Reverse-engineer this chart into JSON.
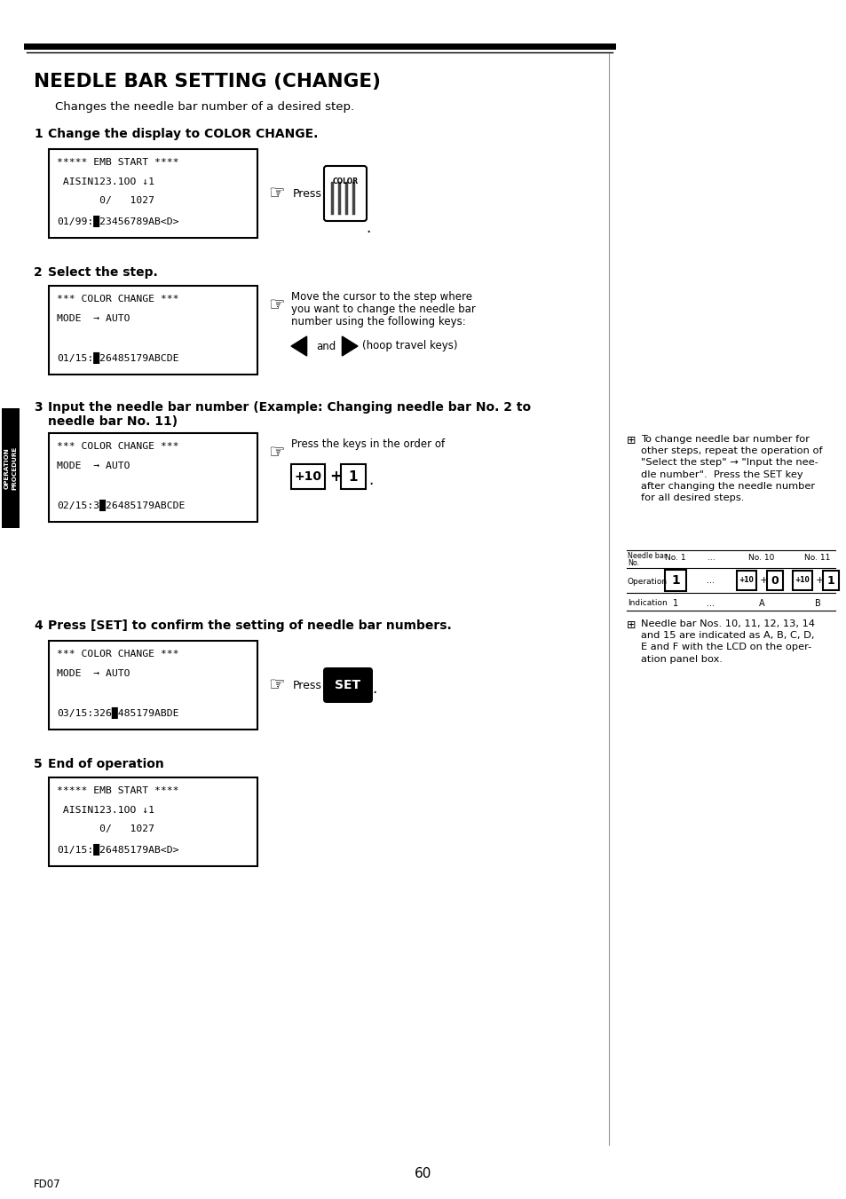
{
  "title": "NEEDLE BAR SETTING (CHANGE)",
  "subtitle": "Changes the needle bar number of a desired step.",
  "bg_color": "#ffffff",
  "page_number": "60",
  "page_id": "FD07",
  "lcd1_lines": [
    "***** EMB START ****",
    " AISIN123.1OO ↓1",
    "       0/   1027",
    "01/99:█23456789AB<D>"
  ],
  "lcd2_lines": [
    "*** COLOR CHANGE ***",
    "MODE  → AUTO",
    "",
    "01/15:█26485179ABCDE"
  ],
  "lcd3_lines": [
    "*** COLOR CHANGE ***",
    "MODE  → AUTO",
    "",
    "02/15:3█26485179ABCDE"
  ],
  "lcd4_lines": [
    "*** COLOR CHANGE ***",
    "MODE  → AUTO",
    "",
    "03/15:326█485179ABDE"
  ],
  "lcd5_lines": [
    "***** EMB START ****",
    " AISIN123.1OO ↓1",
    "       0/   1027",
    "01/15:█26485179AB<D>"
  ],
  "note1_text": "To change needle bar number for\nother steps, repeat the operation of\n\"Select the step\" → \"Input the nee-\ndle number\".  Press the SET key\nafter changing the needle number\nfor all desired steps.",
  "note2_text": "Needle bar Nos. 10, 11, 12, 13, 14\nand 15 are indicated as A, B, C, D,\nE and F with the LCD on the oper-\nation panel box."
}
